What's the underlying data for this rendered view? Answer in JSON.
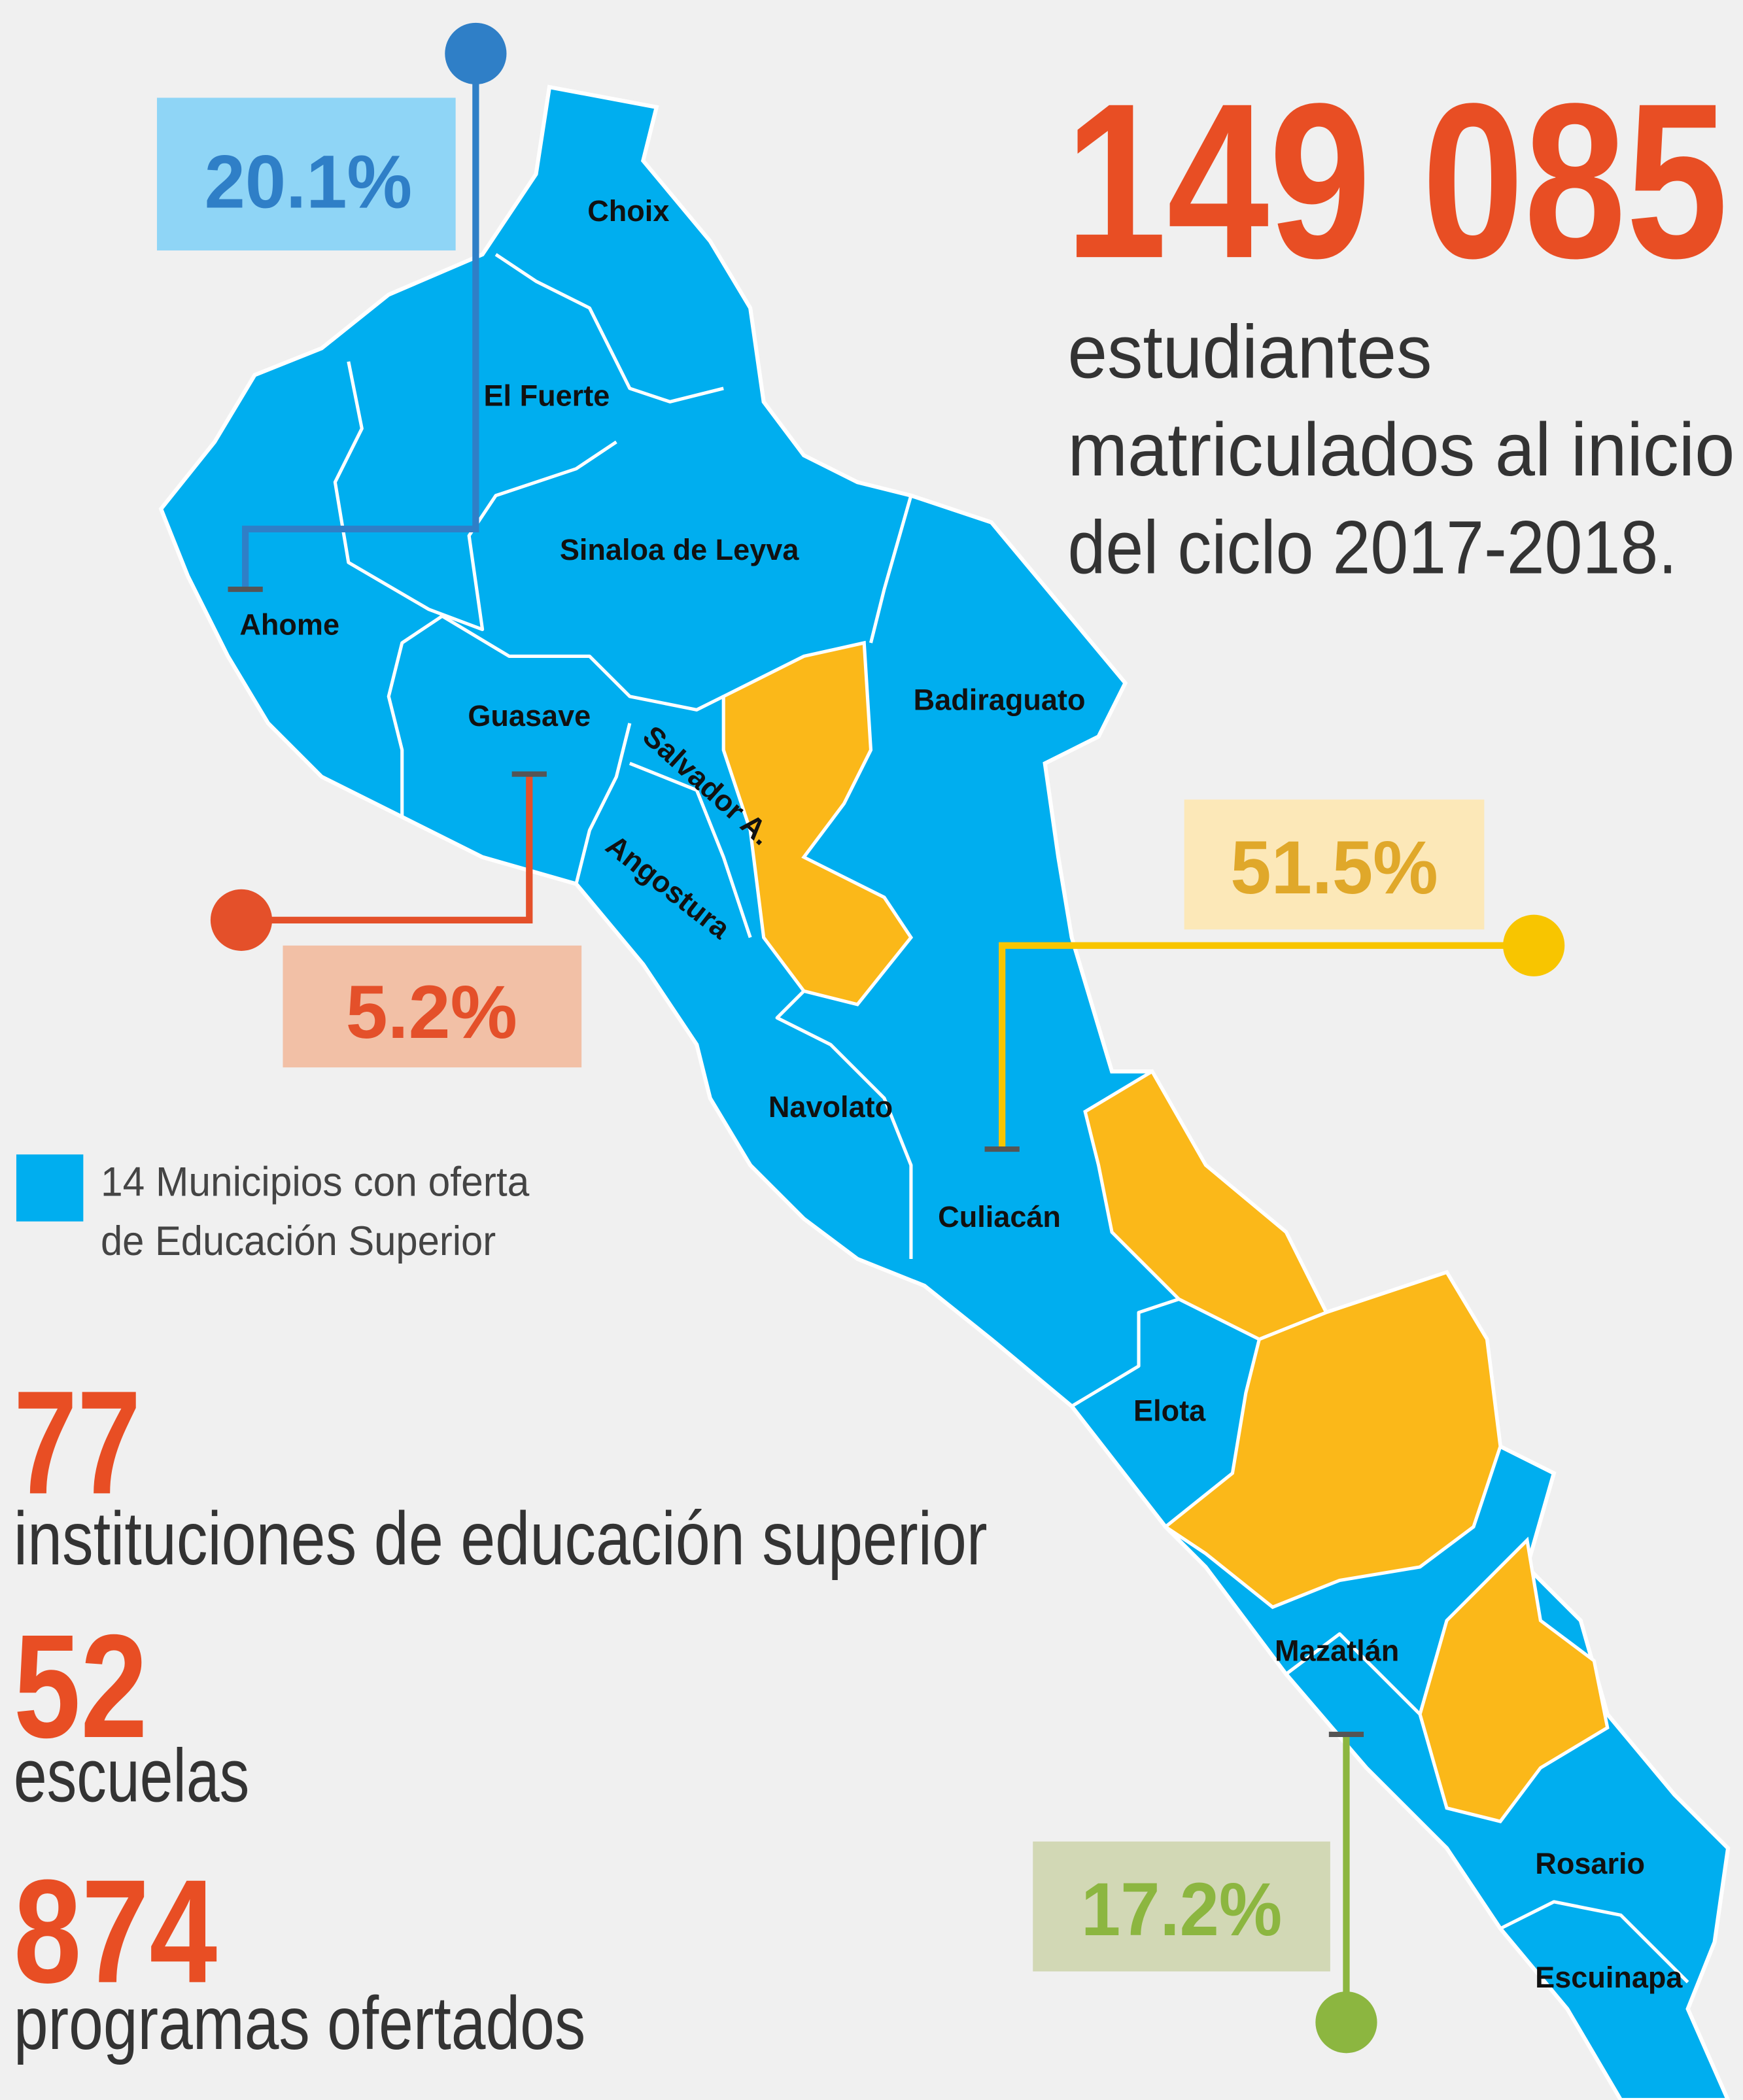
{
  "headline": {
    "number": "149 085",
    "lines": [
      "estudiantes",
      "matriculados al inicio",
      "del ciclo 2017-2018."
    ]
  },
  "legend": {
    "lines": [
      "14 Municipios con oferta",
      "de Educación Superior"
    ]
  },
  "stats": [
    {
      "number": "77",
      "label": "instituciones de educación superior"
    },
    {
      "number": "52",
      "label": "escuelas"
    },
    {
      "number": "874",
      "label": "programas ofertados"
    }
  ],
  "municipalities": [
    "Choix",
    "El Fuerte",
    "Ahome",
    "Sinaloa de Leyva",
    "Guasave",
    "Badiraguato",
    "Salvador A.",
    "Angostura",
    "Navolato",
    "Culiacán",
    "Elota",
    "Mazatlán",
    "Rosario",
    "Escuinapa"
  ],
  "callouts": [
    {
      "label": "20.1%"
    },
    {
      "label": "5.2%"
    },
    {
      "label": "51.5%"
    },
    {
      "label": "17.2%"
    }
  ]
}
